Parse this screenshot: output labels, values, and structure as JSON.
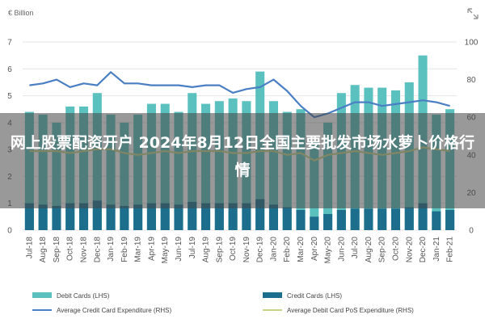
{
  "banner": {
    "title": "网上股票配资开户 2024年8月12日全国主要批发市场水萝卜价格行情"
  },
  "icons": {
    "corner": "resize-icon"
  },
  "colors": {
    "debit": "#5bc1bf",
    "credit": "#1c6e8c",
    "avg_credit_line": "#4a7fc4",
    "avg_debit_line": "#c7d58a",
    "grid": "#e4e4e4",
    "banner": "rgba(70,70,70,0.55)"
  },
  "chart_data": {
    "type": "bar",
    "y_unit_label": "€ Billion",
    "ylim_left": [
      0,
      7
    ],
    "yticks_left": [
      0,
      1,
      2,
      3,
      4,
      5,
      6,
      7
    ],
    "ylim_right": [
      0,
      100
    ],
    "yticks_right": [
      0,
      20,
      40,
      60,
      80,
      100
    ],
    "grid": true,
    "legend_placement": "bottom",
    "categories": [
      "Jul-18",
      "Aug-18",
      "Sep-18",
      "Oct-18",
      "Nov-18",
      "Dec-18",
      "Jan-19",
      "Feb-19",
      "Mar-19",
      "Apr-19",
      "May-19",
      "Jun-19",
      "Jul-19",
      "Aug-19",
      "Sep-19",
      "Oct-19",
      "Nov-19",
      "Dec-19",
      "Jan-20",
      "Feb-20",
      "Mar-20",
      "Apr-20",
      "May-20",
      "Jun-20",
      "Jul-20",
      "Aug-20",
      "Sep-20",
      "Oct-20",
      "Nov-20",
      "Dec-20",
      "Jan-21",
      "Feb-21"
    ],
    "series": [
      {
        "name": "Debit Cards (LHS)",
        "kind": "bar",
        "axis": "left",
        "values": [
          4.4,
          4.3,
          4.0,
          4.6,
          4.6,
          5.1,
          4.3,
          4.0,
          4.3,
          4.7,
          4.7,
          4.4,
          5.1,
          4.7,
          4.8,
          4.9,
          4.8,
          5.9,
          4.8,
          4.4,
          4.5,
          3.3,
          4.0,
          5.1,
          5.4,
          5.3,
          5.3,
          5.2,
          5.5,
          6.5,
          4.3,
          4.5
        ]
      },
      {
        "name": "Credit Cards (LHS)",
        "kind": "bar",
        "axis": "left",
        "values": [
          1.0,
          0.95,
          0.9,
          1.0,
          1.0,
          1.1,
          0.95,
          0.9,
          0.95,
          1.0,
          1.0,
          0.95,
          1.05,
          1.0,
          1.0,
          1.0,
          1.0,
          1.15,
          0.95,
          0.85,
          0.75,
          0.5,
          0.6,
          0.75,
          0.8,
          0.8,
          0.8,
          0.8,
          0.85,
          1.0,
          0.7,
          0.75
        ]
      },
      {
        "name": "Average Credit Card Expenditure (RHS)",
        "kind": "line",
        "axis": "right",
        "values": [
          77,
          78,
          80,
          76,
          78,
          77,
          84,
          78,
          78,
          77,
          77,
          77,
          76,
          77,
          77,
          73,
          75,
          76,
          80,
          74,
          66,
          60,
          62,
          65,
          68,
          68,
          66,
          67,
          68,
          69,
          68,
          66
        ]
      },
      {
        "name": "Average Debit Card PoS Expenditure (RHS)",
        "kind": "line",
        "axis": "right",
        "values": [
          42,
          42,
          42,
          41,
          42,
          43,
          43,
          41,
          40,
          41,
          42,
          41,
          42,
          42,
          42,
          41,
          41,
          42,
          42,
          40,
          41,
          37,
          40,
          41,
          42,
          41,
          40,
          41,
          42,
          44,
          43,
          42
        ]
      }
    ]
  }
}
